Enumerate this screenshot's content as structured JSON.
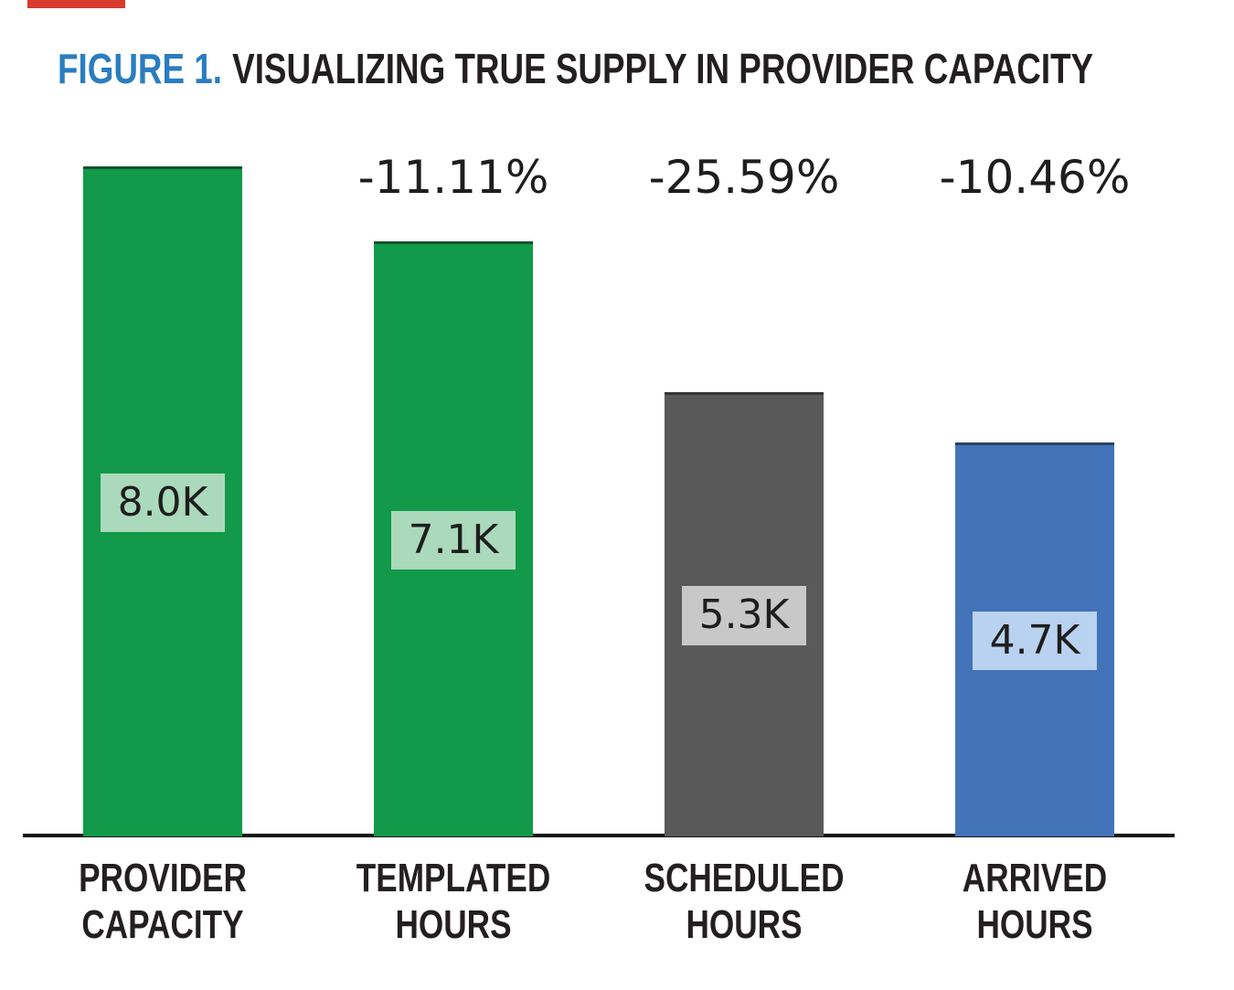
{
  "page": {
    "background": "#ffffff",
    "accent_bar_color": "#d93a30"
  },
  "title": {
    "prefix": "FIGURE 1.",
    "text": "VISUALIZING TRUE SUPPLY IN PROVIDER CAPACITY",
    "prefix_color": "#2a7dc0",
    "text_color": "#231f20"
  },
  "chart_data": {
    "type": "bar",
    "title": "FIGURE 1. VISUALIZING TRUE SUPPLY IN PROVIDER CAPACITY",
    "categories": [
      "PROVIDER CAPACITY",
      "TEMPLATED HOURS",
      "SCHEDULED HOURS",
      "ARRIVED HOURS"
    ],
    "values": [
      8000,
      7100,
      5300,
      4700
    ],
    "value_labels": [
      "8.0K",
      "7.1K",
      "5.3K",
      "4.7K"
    ],
    "pct_change_labels": [
      null,
      "-11.11%",
      "-25.59%",
      "-10.46%"
    ],
    "bar_colors": [
      "#12994a",
      "#12994a",
      "#595959",
      "#4273b8"
    ],
    "value_box_colors": [
      "#abd9bc",
      "#abd9bc",
      "#c8c8c8",
      "#b8d2f0"
    ],
    "xlabel": "",
    "ylabel": "",
    "ylim": [
      0,
      8000
    ],
    "grid": false,
    "legend": false,
    "axis_line_color": "#161616",
    "category_label_color": "#231f20",
    "pct_label_color": "#1e1e1e",
    "value_label_color": "#1e1e1e"
  }
}
